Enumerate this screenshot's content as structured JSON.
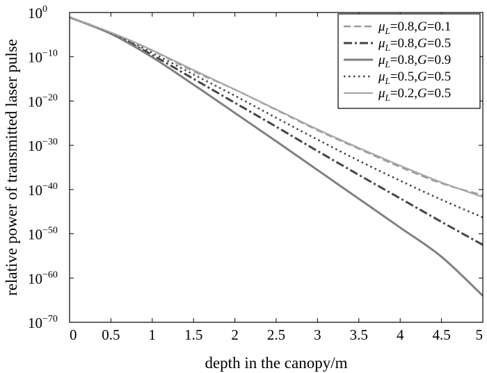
{
  "chart_data": {
    "type": "line",
    "title": "",
    "xlabel": "depth in the canopy/m",
    "ylabel": "relative power of transmitted laser pulse",
    "xlim": [
      0,
      5
    ],
    "ylim_exponent": [
      -70,
      0
    ],
    "y_scale": "log",
    "y_tick_base": "10",
    "x_ticks": [
      "0",
      "0.5",
      "1",
      "1.5",
      "2",
      "2.5",
      "3",
      "3.5",
      "4",
      "4.5",
      "5"
    ],
    "y_ticks": [
      {
        "exp": 0,
        "label": "0"
      },
      {
        "exp": -10,
        "label": "−10"
      },
      {
        "exp": -20,
        "label": "−20"
      },
      {
        "exp": -30,
        "label": "−30"
      },
      {
        "exp": -40,
        "label": "−40"
      },
      {
        "exp": -50,
        "label": "−50"
      },
      {
        "exp": -60,
        "label": "−60"
      },
      {
        "exp": -70,
        "label": "−70"
      }
    ],
    "grid": false,
    "legend_position": "top-right",
    "x": [
      0,
      0.5,
      1,
      1.5,
      2,
      2.5,
      3,
      3.5,
      4,
      4.5,
      5
    ],
    "series": [
      {
        "key": "s1",
        "mu": "0.8",
        "g": "0.1",
        "color": "#999999",
        "style": "dashed",
        "log10_values": [
          -1.1,
          -4.6,
          -8.6,
          -13.3,
          -17.4,
          -22.0,
          -26.6,
          -30.8,
          -34.9,
          -38.6,
          -41.3
        ]
      },
      {
        "key": "s2",
        "mu": "0.8",
        "g": "0.5",
        "color": "#444444",
        "style": "dashdot",
        "log10_values": [
          -1.1,
          -4.7,
          -9.6,
          -15.0,
          -20.4,
          -25.8,
          -31.3,
          -36.7,
          -42.0,
          -47.3,
          -52.5
        ]
      },
      {
        "key": "s3",
        "mu": "0.8",
        "g": "0.9",
        "color": "#808080",
        "style": "solid-thick",
        "log10_values": [
          -1.1,
          -4.8,
          -10.1,
          -16.3,
          -22.7,
          -29.1,
          -35.6,
          -42.1,
          -48.6,
          -55.2,
          -64.0
        ]
      },
      {
        "key": "s4",
        "mu": "0.5",
        "g": "0.5",
        "color": "#444444",
        "style": "dotted",
        "log10_values": [
          -1.1,
          -4.6,
          -9.1,
          -14.0,
          -18.8,
          -23.8,
          -28.7,
          -33.5,
          -38.0,
          -42.3,
          -46.3
        ]
      },
      {
        "key": "s5",
        "mu": "0.2",
        "g": "0.5",
        "color": "#a6a6a6",
        "style": "solid-thin",
        "log10_values": [
          -1.1,
          -4.5,
          -8.5,
          -13.0,
          -17.4,
          -21.9,
          -26.4,
          -30.6,
          -34.6,
          -38.4,
          -41.7
        ]
      }
    ]
  }
}
